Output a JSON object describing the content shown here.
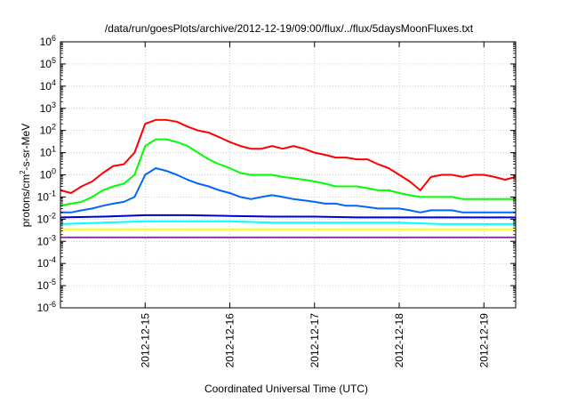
{
  "chart_data": {
    "type": "line",
    "title": "/data/run/goesPlots/archive/2012-12-19/09:00/flux/../flux/5daysMoonFluxes.txt",
    "xlabel": "Coordinated Universal Time (UTC)",
    "ylabel": {
      "base": "protons/cm",
      "sup": "2",
      "rest": "-s-sr-MeV"
    },
    "y_scale": "log",
    "ylim": [
      1e-06,
      1000000.0
    ],
    "y_ticks": [
      {
        "value": 1e-06,
        "base": "10",
        "exp": "-6"
      },
      {
        "value": 1e-05,
        "base": "10",
        "exp": "-5"
      },
      {
        "value": 0.0001,
        "base": "10",
        "exp": "-4"
      },
      {
        "value": 0.001,
        "base": "10",
        "exp": "-3"
      },
      {
        "value": 0.01,
        "base": "10",
        "exp": "-2"
      },
      {
        "value": 0.1,
        "base": "10",
        "exp": "-1"
      },
      {
        "value": 1,
        "base": "10",
        "exp": "0"
      },
      {
        "value": 10,
        "base": "10",
        "exp": "1"
      },
      {
        "value": 100,
        "base": "10",
        "exp": "2"
      },
      {
        "value": 1000.0,
        "base": "10",
        "exp": "3"
      },
      {
        "value": 10000.0,
        "base": "10",
        "exp": "4"
      },
      {
        "value": 100000.0,
        "base": "10",
        "exp": "5"
      },
      {
        "value": 1000000.0,
        "base": "10",
        "exp": "6"
      }
    ],
    "xlim": [
      "2012-12-14 00:00",
      "2012-12-19 09:00"
    ],
    "x_ticks": [
      "2012-12-15",
      "2012-12-16",
      "2012-12-17",
      "2012-12-18",
      "2012-12-19"
    ],
    "grid": true,
    "legend": "none",
    "series": [
      {
        "color": "#ff0000",
        "points": [
          [
            "2012-12-14 00:00",
            0.2
          ],
          [
            "2012-12-14 03:00",
            0.15
          ],
          [
            "2012-12-14 06:00",
            0.3
          ],
          [
            "2012-12-14 09:00",
            0.5
          ],
          [
            "2012-12-14 12:00",
            1.2
          ],
          [
            "2012-12-14 15:00",
            2.5
          ],
          [
            "2012-12-14 18:00",
            3
          ],
          [
            "2012-12-14 21:00",
            10
          ],
          [
            "2012-12-15 00:00",
            200
          ],
          [
            "2012-12-15 03:00",
            300
          ],
          [
            "2012-12-15 06:00",
            300
          ],
          [
            "2012-12-15 09:00",
            250
          ],
          [
            "2012-12-15 12:00",
            150
          ],
          [
            "2012-12-15 15:00",
            100
          ],
          [
            "2012-12-15 18:00",
            80
          ],
          [
            "2012-12-15 21:00",
            50
          ],
          [
            "2012-12-16 00:00",
            30
          ],
          [
            "2012-12-16 03:00",
            20
          ],
          [
            "2012-12-16 06:00",
            15
          ],
          [
            "2012-12-16 09:00",
            15
          ],
          [
            "2012-12-16 12:00",
            20
          ],
          [
            "2012-12-16 15:00",
            15
          ],
          [
            "2012-12-16 18:00",
            20
          ],
          [
            "2012-12-16 21:00",
            15
          ],
          [
            "2012-12-17 00:00",
            10
          ],
          [
            "2012-12-17 03:00",
            8
          ],
          [
            "2012-12-17 06:00",
            6
          ],
          [
            "2012-12-17 09:00",
            6
          ],
          [
            "2012-12-17 12:00",
            5
          ],
          [
            "2012-12-17 15:00",
            5
          ],
          [
            "2012-12-17 18:00",
            3
          ],
          [
            "2012-12-17 21:00",
            2
          ],
          [
            "2012-12-18 00:00",
            1
          ],
          [
            "2012-12-18 03:00",
            0.5
          ],
          [
            "2012-12-18 06:00",
            0.2
          ],
          [
            "2012-12-18 09:00",
            0.8
          ],
          [
            "2012-12-18 12:00",
            1
          ],
          [
            "2012-12-18 15:00",
            1
          ],
          [
            "2012-12-18 18:00",
            0.8
          ],
          [
            "2012-12-18 21:00",
            1
          ],
          [
            "2012-12-19 00:00",
            1
          ],
          [
            "2012-12-19 03:00",
            0.8
          ],
          [
            "2012-12-19 06:00",
            0.6
          ],
          [
            "2012-12-19 09:00",
            0.8
          ]
        ]
      },
      {
        "color": "#00ff00",
        "points": [
          [
            "2012-12-14 00:00",
            0.04
          ],
          [
            "2012-12-14 03:00",
            0.05
          ],
          [
            "2012-12-14 06:00",
            0.06
          ],
          [
            "2012-12-14 09:00",
            0.1
          ],
          [
            "2012-12-14 12:00",
            0.2
          ],
          [
            "2012-12-14 15:00",
            0.3
          ],
          [
            "2012-12-14 18:00",
            0.4
          ],
          [
            "2012-12-14 21:00",
            1
          ],
          [
            "2012-12-15 00:00",
            20
          ],
          [
            "2012-12-15 03:00",
            40
          ],
          [
            "2012-12-15 06:00",
            40
          ],
          [
            "2012-12-15 09:00",
            30
          ],
          [
            "2012-12-15 12:00",
            20
          ],
          [
            "2012-12-15 15:00",
            10
          ],
          [
            "2012-12-15 18:00",
            5
          ],
          [
            "2012-12-15 21:00",
            3
          ],
          [
            "2012-12-16 00:00",
            2
          ],
          [
            "2012-12-16 03:00",
            1.2
          ],
          [
            "2012-12-16 06:00",
            1
          ],
          [
            "2012-12-16 09:00",
            1
          ],
          [
            "2012-12-16 12:00",
            1
          ],
          [
            "2012-12-16 15:00",
            0.8
          ],
          [
            "2012-12-16 18:00",
            0.7
          ],
          [
            "2012-12-16 21:00",
            0.6
          ],
          [
            "2012-12-17 00:00",
            0.5
          ],
          [
            "2012-12-17 03:00",
            0.4
          ],
          [
            "2012-12-17 06:00",
            0.3
          ],
          [
            "2012-12-17 09:00",
            0.3
          ],
          [
            "2012-12-17 12:00",
            0.3
          ],
          [
            "2012-12-17 15:00",
            0.25
          ],
          [
            "2012-12-17 18:00",
            0.2
          ],
          [
            "2012-12-17 21:00",
            0.2
          ],
          [
            "2012-12-18 00:00",
            0.15
          ],
          [
            "2012-12-18 03:00",
            0.12
          ],
          [
            "2012-12-18 06:00",
            0.1
          ],
          [
            "2012-12-18 09:00",
            0.1
          ],
          [
            "2012-12-18 12:00",
            0.1
          ],
          [
            "2012-12-18 15:00",
            0.1
          ],
          [
            "2012-12-18 18:00",
            0.08
          ],
          [
            "2012-12-18 21:00",
            0.08
          ],
          [
            "2012-12-19 00:00",
            0.08
          ],
          [
            "2012-12-19 03:00",
            0.08
          ],
          [
            "2012-12-19 06:00",
            0.08
          ],
          [
            "2012-12-19 09:00",
            0.08
          ]
        ]
      },
      {
        "color": "#0066ff",
        "points": [
          [
            "2012-12-14 00:00",
            0.02
          ],
          [
            "2012-12-14 03:00",
            0.02
          ],
          [
            "2012-12-14 06:00",
            0.025
          ],
          [
            "2012-12-14 09:00",
            0.03
          ],
          [
            "2012-12-14 12:00",
            0.04
          ],
          [
            "2012-12-14 15:00",
            0.05
          ],
          [
            "2012-12-14 18:00",
            0.06
          ],
          [
            "2012-12-14 21:00",
            0.1
          ],
          [
            "2012-12-15 00:00",
            1
          ],
          [
            "2012-12-15 03:00",
            2
          ],
          [
            "2012-12-15 06:00",
            1.5
          ],
          [
            "2012-12-15 09:00",
            1
          ],
          [
            "2012-12-15 12:00",
            0.6
          ],
          [
            "2012-12-15 15:00",
            0.4
          ],
          [
            "2012-12-15 18:00",
            0.3
          ],
          [
            "2012-12-15 21:00",
            0.2
          ],
          [
            "2012-12-16 00:00",
            0.15
          ],
          [
            "2012-12-16 03:00",
            0.1
          ],
          [
            "2012-12-16 06:00",
            0.08
          ],
          [
            "2012-12-16 09:00",
            0.1
          ],
          [
            "2012-12-16 12:00",
            0.12
          ],
          [
            "2012-12-16 15:00",
            0.1
          ],
          [
            "2012-12-16 18:00",
            0.08
          ],
          [
            "2012-12-16 21:00",
            0.07
          ],
          [
            "2012-12-17 00:00",
            0.06
          ],
          [
            "2012-12-17 03:00",
            0.05
          ],
          [
            "2012-12-17 06:00",
            0.05
          ],
          [
            "2012-12-17 09:00",
            0.04
          ],
          [
            "2012-12-17 12:00",
            0.04
          ],
          [
            "2012-12-17 15:00",
            0.035
          ],
          [
            "2012-12-17 18:00",
            0.03
          ],
          [
            "2012-12-17 21:00",
            0.03
          ],
          [
            "2012-12-18 00:00",
            0.03
          ],
          [
            "2012-12-18 03:00",
            0.025
          ],
          [
            "2012-12-18 06:00",
            0.02
          ],
          [
            "2012-12-18 09:00",
            0.025
          ],
          [
            "2012-12-18 12:00",
            0.025
          ],
          [
            "2012-12-18 15:00",
            0.025
          ],
          [
            "2012-12-18 18:00",
            0.02
          ],
          [
            "2012-12-18 21:00",
            0.02
          ],
          [
            "2012-12-19 00:00",
            0.02
          ],
          [
            "2012-12-19 03:00",
            0.02
          ],
          [
            "2012-12-19 06:00",
            0.02
          ],
          [
            "2012-12-19 09:00",
            0.02
          ]
        ]
      },
      {
        "color": "#0000cc",
        "points": [
          [
            "2012-12-14 00:00",
            0.012
          ],
          [
            "2012-12-14 12:00",
            0.013
          ],
          [
            "2012-12-15 00:00",
            0.015
          ],
          [
            "2012-12-15 12:00",
            0.015
          ],
          [
            "2012-12-16 00:00",
            0.014
          ],
          [
            "2012-12-16 12:00",
            0.013
          ],
          [
            "2012-12-17 00:00",
            0.013
          ],
          [
            "2012-12-17 12:00",
            0.012
          ],
          [
            "2012-12-18 00:00",
            0.012
          ],
          [
            "2012-12-18 12:00",
            0.012
          ],
          [
            "2012-12-19 00:00",
            0.012
          ],
          [
            "2012-12-19 09:00",
            0.012
          ]
        ]
      },
      {
        "color": "#00ffff",
        "points": [
          [
            "2012-12-14 00:00",
            0.006
          ],
          [
            "2012-12-14 12:00",
            0.007
          ],
          [
            "2012-12-15 00:00",
            0.008
          ],
          [
            "2012-12-15 12:00",
            0.008
          ],
          [
            "2012-12-16 00:00",
            0.008
          ],
          [
            "2012-12-16 12:00",
            0.007
          ],
          [
            "2012-12-17 00:00",
            0.007
          ],
          [
            "2012-12-17 12:00",
            0.007
          ],
          [
            "2012-12-18 00:00",
            0.007
          ],
          [
            "2012-12-18 12:00",
            0.006
          ],
          [
            "2012-12-19 00:00",
            0.006
          ],
          [
            "2012-12-19 09:00",
            0.006
          ]
        ]
      },
      {
        "color": "#ffff00",
        "points": [
          [
            "2012-12-14 00:00",
            0.0035
          ],
          [
            "2012-12-14 12:00",
            0.0035
          ],
          [
            "2012-12-15 00:00",
            0.0035
          ],
          [
            "2012-12-15 12:00",
            0.0035
          ],
          [
            "2012-12-16 00:00",
            0.0035
          ],
          [
            "2012-12-16 12:00",
            0.0035
          ],
          [
            "2012-12-17 00:00",
            0.0035
          ],
          [
            "2012-12-17 12:00",
            0.0035
          ],
          [
            "2012-12-18 00:00",
            0.0035
          ],
          [
            "2012-12-18 12:00",
            0.0035
          ],
          [
            "2012-12-19 00:00",
            0.0035
          ],
          [
            "2012-12-19 09:00",
            0.0035
          ]
        ]
      },
      {
        "color": "#993399",
        "points": [
          [
            "2012-12-14 00:00",
            0.0015
          ],
          [
            "2012-12-14 12:00",
            0.0015
          ],
          [
            "2012-12-15 00:00",
            0.0015
          ],
          [
            "2012-12-15 12:00",
            0.0015
          ],
          [
            "2012-12-16 00:00",
            0.0015
          ],
          [
            "2012-12-16 12:00",
            0.0015
          ],
          [
            "2012-12-17 00:00",
            0.0015
          ],
          [
            "2012-12-17 12:00",
            0.0015
          ],
          [
            "2012-12-18 00:00",
            0.0015
          ],
          [
            "2012-12-18 12:00",
            0.0015
          ],
          [
            "2012-12-19 00:00",
            0.0015
          ],
          [
            "2012-12-19 09:00",
            0.0015
          ]
        ]
      }
    ]
  }
}
